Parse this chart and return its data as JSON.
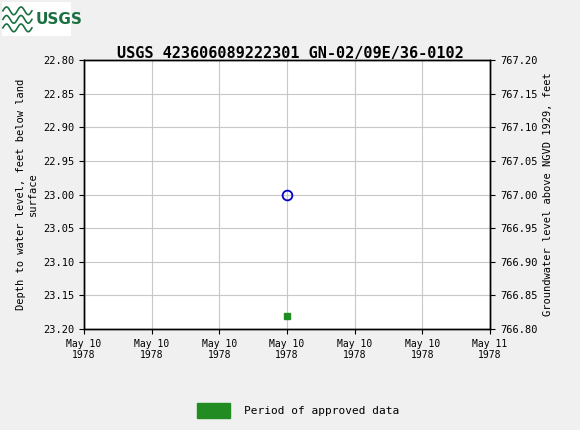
{
  "title": "USGS 423606089222301 GN-02/09E/36-0102",
  "title_fontsize": 11,
  "ylabel_left": "Depth to water level, feet below land\nsurface",
  "ylabel_right": "Groundwater level above NGVD 1929, feet",
  "ylim_left": [
    22.8,
    23.2
  ],
  "ylim_right": [
    766.8,
    767.2
  ],
  "yticks_left": [
    22.8,
    22.85,
    22.9,
    22.95,
    23.0,
    23.05,
    23.1,
    23.15,
    23.2
  ],
  "yticks_right": [
    766.8,
    766.85,
    766.9,
    766.95,
    767.0,
    767.05,
    767.1,
    767.15,
    767.2
  ],
  "xlim": [
    0,
    6
  ],
  "xtick_labels": [
    "May 10\n1978",
    "May 10\n1978",
    "May 10\n1978",
    "May 10\n1978",
    "May 10\n1978",
    "May 10\n1978",
    "May 11\n1978"
  ],
  "xtick_positions": [
    0,
    1,
    2,
    3,
    4,
    5,
    6
  ],
  "data_point_x": 3,
  "data_point_y": 23.0,
  "green_marker_x": 3,
  "green_marker_y": 23.18,
  "plot_bg_color": "#ffffff",
  "grid_color": "#c8c8c8",
  "header_bg_color": "#1a7040",
  "circle_color": "#0000cc",
  "green_color": "#228B22",
  "legend_label": "Period of approved data",
  "font_family": "monospace"
}
